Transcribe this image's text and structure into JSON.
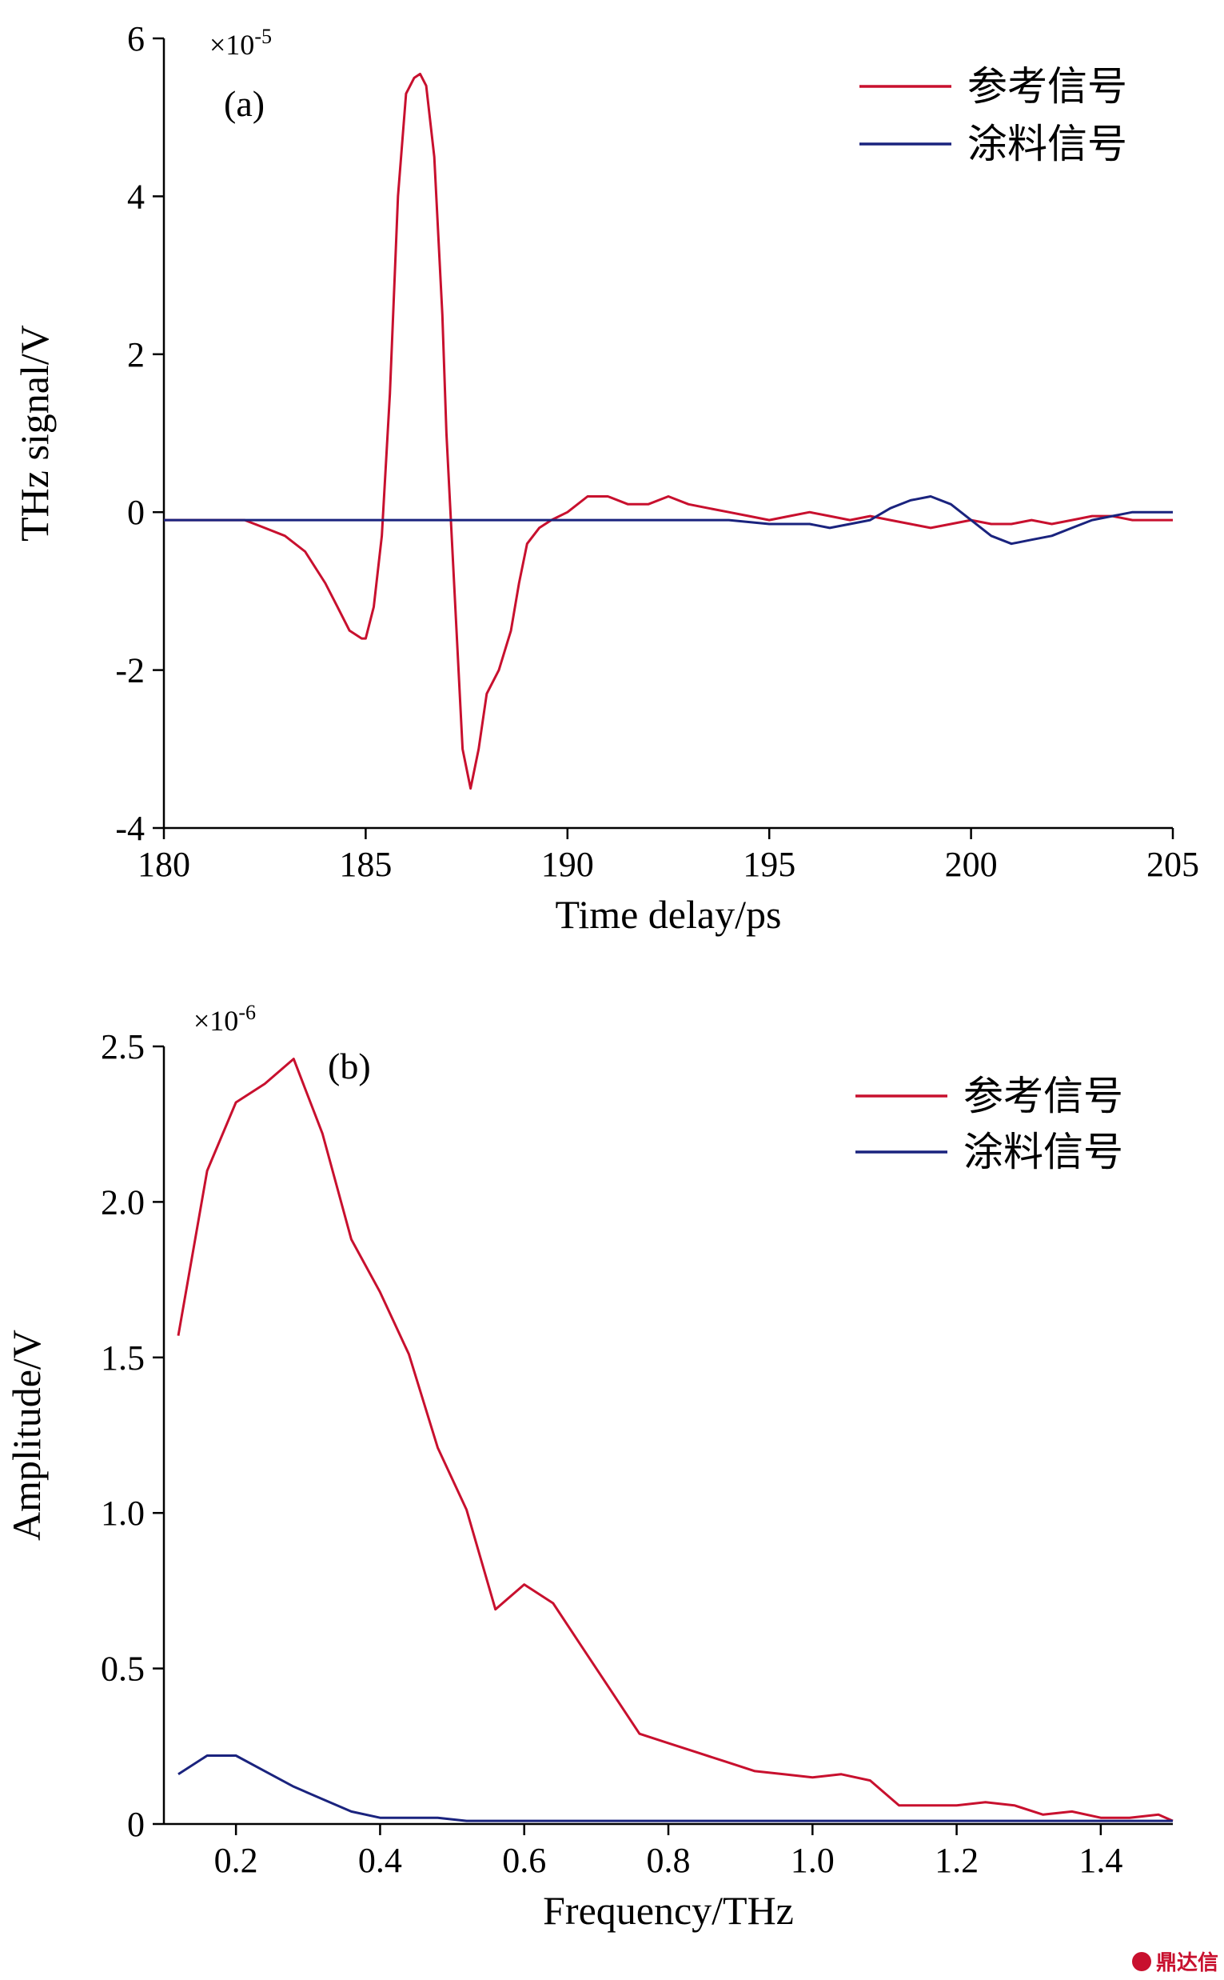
{
  "colors": {
    "reference": "#c8102e",
    "coating": "#1a237e",
    "axis": "#000000"
  },
  "watermark": "鼎达信",
  "chart_data": [
    {
      "type": "line",
      "panel_label": "(a)",
      "xlabel": "Time delay/ps",
      "ylabel": "THz signal/V",
      "y_multiplier": "×10",
      "y_multiplier_exp": "-5",
      "xlim": [
        180,
        205
      ],
      "ylim": [
        -4,
        6
      ],
      "xticks": [
        180,
        185,
        190,
        195,
        200,
        205
      ],
      "yticks": [
        -4,
        -2,
        0,
        2,
        4,
        6
      ],
      "xtick_labels": [
        "180",
        "185",
        "190",
        "195",
        "200",
        "205"
      ],
      "ytick_labels": [
        "-4",
        "-2",
        "0",
        "2",
        "4",
        "6"
      ],
      "legend_position": "top-right",
      "series": [
        {
          "name": "参考信号",
          "color": "#c8102e",
          "x": [
            180,
            181,
            181.5,
            182,
            182.5,
            183,
            183.5,
            184,
            184.3,
            184.6,
            184.9,
            185.0,
            185.2,
            185.4,
            185.6,
            185.8,
            186.0,
            186.2,
            186.35,
            186.5,
            186.7,
            186.9,
            187.0,
            187.2,
            187.4,
            187.6,
            187.8,
            188.0,
            188.3,
            188.6,
            188.8,
            189.0,
            189.3,
            189.6,
            190.0,
            190.5,
            191.0,
            191.5,
            192.0,
            192.5,
            193.0,
            193.5,
            194.0,
            194.5,
            195.0,
            195.5,
            196.0,
            196.5,
            197.0,
            197.5,
            198.0,
            198.5,
            199.0,
            199.5,
            200.0,
            200.5,
            201.0,
            201.5,
            202.0,
            202.5,
            203.0,
            203.5,
            204.0,
            204.5,
            205.0
          ],
          "y": [
            -0.1,
            -0.1,
            -0.1,
            -0.1,
            -0.2,
            -0.3,
            -0.5,
            -0.9,
            -1.2,
            -1.5,
            -1.6,
            -1.6,
            -1.2,
            -0.3,
            1.5,
            4.0,
            5.3,
            5.5,
            5.55,
            5.4,
            4.5,
            2.5,
            1.0,
            -1.0,
            -3.0,
            -3.5,
            -3.0,
            -2.3,
            -2.0,
            -1.5,
            -0.9,
            -0.4,
            -0.2,
            -0.1,
            0.0,
            0.2,
            0.2,
            0.1,
            0.1,
            0.2,
            0.1,
            0.05,
            0.0,
            -0.05,
            -0.1,
            -0.05,
            0.0,
            -0.05,
            -0.1,
            -0.05,
            -0.1,
            -0.15,
            -0.2,
            -0.15,
            -0.1,
            -0.15,
            -0.15,
            -0.1,
            -0.15,
            -0.1,
            -0.05,
            -0.05,
            -0.1,
            -0.1,
            -0.1
          ]
        },
        {
          "name": "涂料信号",
          "color": "#1a237e",
          "x": [
            180,
            181,
            182,
            183,
            184,
            185,
            186,
            187,
            188,
            189,
            190,
            191,
            192,
            193,
            194,
            195,
            196,
            196.5,
            197,
            197.5,
            198,
            198.5,
            199,
            199.5,
            200,
            200.5,
            201,
            201.5,
            202,
            202.5,
            203,
            203.5,
            204,
            204.5,
            205
          ],
          "y": [
            -0.1,
            -0.1,
            -0.1,
            -0.1,
            -0.1,
            -0.1,
            -0.1,
            -0.1,
            -0.1,
            -0.1,
            -0.1,
            -0.1,
            -0.1,
            -0.1,
            -0.1,
            -0.15,
            -0.15,
            -0.2,
            -0.15,
            -0.1,
            0.05,
            0.15,
            0.2,
            0.1,
            -0.1,
            -0.3,
            -0.4,
            -0.35,
            -0.3,
            -0.2,
            -0.1,
            -0.05,
            0.0,
            0.0,
            0.0
          ]
        }
      ]
    },
    {
      "type": "line",
      "panel_label": "(b)",
      "xlabel": "Frequency/THz",
      "ylabel": "Amplitude/V",
      "y_multiplier": "×10",
      "y_multiplier_exp": "-6",
      "xlim": [
        0.1,
        1.5
      ],
      "ylim": [
        0,
        2.5
      ],
      "xticks": [
        0.2,
        0.4,
        0.6,
        0.8,
        1.0,
        1.2,
        1.4
      ],
      "yticks": [
        0,
        0.5,
        1.0,
        1.5,
        2.0,
        2.5
      ],
      "xtick_labels": [
        "0.2",
        "0.4",
        "0.6",
        "0.8",
        "1.0",
        "1.2",
        "1.4"
      ],
      "ytick_labels": [
        "0",
        "0.5",
        "1.0",
        "1.5",
        "2.0",
        "2.5"
      ],
      "legend_position": "top-right",
      "series": [
        {
          "name": "参考信号",
          "color": "#c8102e",
          "x": [
            0.12,
            0.16,
            0.2,
            0.24,
            0.28,
            0.32,
            0.36,
            0.4,
            0.44,
            0.48,
            0.52,
            0.56,
            0.6,
            0.64,
            0.68,
            0.72,
            0.76,
            0.8,
            0.84,
            0.88,
            0.92,
            0.96,
            1.0,
            1.04,
            1.08,
            1.12,
            1.16,
            1.2,
            1.24,
            1.28,
            1.32,
            1.36,
            1.4,
            1.44,
            1.48,
            1.5
          ],
          "y": [
            1.57,
            2.1,
            2.32,
            2.38,
            2.46,
            2.22,
            1.88,
            1.71,
            1.51,
            1.21,
            1.01,
            0.69,
            0.77,
            0.71,
            0.57,
            0.43,
            0.29,
            0.26,
            0.23,
            0.2,
            0.17,
            0.16,
            0.15,
            0.16,
            0.14,
            0.06,
            0.06,
            0.06,
            0.07,
            0.06,
            0.03,
            0.04,
            0.02,
            0.02,
            0.03,
            0.01
          ]
        },
        {
          "name": "涂料信号",
          "color": "#1a237e",
          "x": [
            0.12,
            0.16,
            0.2,
            0.24,
            0.28,
            0.32,
            0.36,
            0.4,
            0.44,
            0.48,
            0.52,
            0.56,
            0.6,
            0.7,
            0.8,
            0.9,
            1.0,
            1.1,
            1.2,
            1.3,
            1.4,
            1.5
          ],
          "y": [
            0.16,
            0.22,
            0.22,
            0.17,
            0.12,
            0.08,
            0.04,
            0.02,
            0.02,
            0.02,
            0.01,
            0.01,
            0.01,
            0.01,
            0.01,
            0.01,
            0.01,
            0.01,
            0.01,
            0.01,
            0.01,
            0.01
          ]
        }
      ]
    }
  ]
}
